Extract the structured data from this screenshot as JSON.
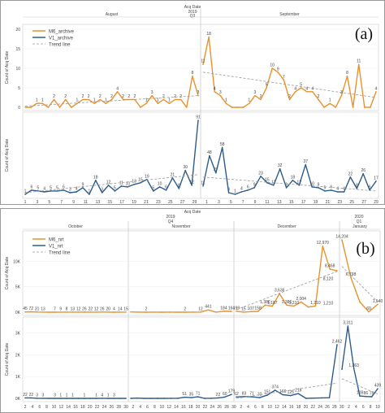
{
  "chart_data": [
    {
      "type": "line",
      "panel_label": "(a)",
      "header": {
        "axis_title": "Acq Date",
        "year": "2019",
        "quarter": "Q3",
        "months": [
          "August",
          "September"
        ]
      },
      "legend": {
        "placement": "top-left",
        "entries": [
          "M6_archive",
          "V1_archive",
          "Trend line"
        ]
      },
      "colors": {
        "M6_archive": "#E8922E",
        "V1_archive": "#2E5C8A",
        "Trend line": "#9A9A9A"
      },
      "x_ticks": [
        "1",
        "3",
        "5",
        "7",
        "9",
        "11",
        "13",
        "15",
        "17",
        "19",
        "21",
        "23",
        "25",
        "27",
        "29",
        "1",
        "3",
        "5",
        "7",
        "9",
        "11",
        "13",
        "15",
        "17",
        "19",
        "21",
        "23",
        "25",
        "27",
        "29"
      ],
      "subplots": [
        {
          "series_name": "M6_archive",
          "ylabel": "Count of Acq Date",
          "ylim": [
            0,
            20
          ],
          "yticks": [
            0,
            5,
            10,
            15,
            20
          ],
          "grid": true,
          "segments": [
            {
              "month": "August",
              "values": [
                0,
                0,
                1,
                1,
                0,
                2,
                0,
                2,
                0,
                1,
                2,
                2,
                1,
                2,
                1,
                2,
                4,
                2,
                2,
                2,
                0,
                1,
                3,
                1,
                2,
                1,
                2,
                2,
                0,
                8,
                3
              ],
              "labels": [
                "",
                "",
                "1",
                "1",
                "",
                "2",
                "",
                "2",
                "",
                "1",
                "2",
                "2",
                "1",
                "2",
                "1",
                "2",
                "4",
                "2",
                "2",
                "2",
                "",
                "1",
                "3",
                "1",
                "2",
                "1",
                "2",
                "2",
                "",
                "8",
                "3"
              ]
            },
            {
              "month": "September",
              "values": [
                11,
                18,
                4,
                3,
                1,
                0,
                0,
                0,
                1,
                3,
                2,
                5,
                10,
                9,
                7,
                2,
                4,
                5,
                4,
                4,
                2,
                0,
                1,
                0,
                3,
                8,
                0,
                11,
                0,
                0,
                4
              ],
              "labels": [
                "11",
                "18",
                "4",
                "3",
                "1",
                "",
                "",
                "",
                "1",
                "3",
                "2",
                "5",
                "10",
                "9",
                "7",
                "2",
                "4",
                "5",
                "4",
                "4",
                "2",
                "",
                "1",
                "",
                "3",
                "8",
                "",
                "11",
                "",
                "",
                "4"
              ]
            }
          ],
          "trend": [
            {
              "month": "August",
              "start": 0.3,
              "end": 3.0
            },
            {
              "month": "September",
              "start": 9.0,
              "end": 2.5
            }
          ]
        },
        {
          "series_name": "V1_archive",
          "ylabel": "Count of Acq Date",
          "ylim": [
            0,
            95
          ],
          "grid": true,
          "segments": [
            {
              "month": "August",
              "values": [
                1,
                6,
                5,
                4,
                5,
                5,
                6,
                3,
                4,
                9,
                1,
                18,
                3,
                12,
                5,
                11,
                10,
                13,
                15,
                19,
                5,
                10,
                6,
                21,
                8,
                30,
                12,
                91
              ],
              "labels": [
                "1",
                "6",
                "5",
                "4",
                "5",
                "5",
                "6",
                "3",
                "4",
                "9",
                "1",
                "18",
                "3",
                "12",
                "5",
                "11",
                "10",
                "13",
                "15",
                "19",
                "5",
                "10",
                "6",
                "21",
                "8",
                "30",
                "12",
                "91"
              ]
            },
            {
              "month": "September",
              "values": [
                11,
                48,
                27,
                58,
                3,
                1,
                4,
                6,
                9,
                23,
                15,
                12,
                32,
                9,
                18,
                12,
                37,
                10,
                9,
                5,
                6,
                4,
                4,
                22,
                8,
                26,
                6,
                17
              ],
              "labels": [
                "11",
                "48",
                "27",
                "58",
                "3",
                "1",
                "4",
                "6",
                "9",
                "23",
                "15",
                "12",
                "32",
                "9",
                "18",
                "12",
                "37",
                "10",
                "9",
                "5",
                "6",
                "4",
                "4",
                "22",
                "8",
                "26",
                "6",
                "17"
              ]
            }
          ],
          "trend": [
            {
              "month": "August",
              "start": 3.0,
              "end": 25.0
            },
            {
              "month": "September",
              "start": 22.0,
              "end": 5.0
            }
          ]
        }
      ]
    },
    {
      "type": "line",
      "panel_label": "(b)",
      "header": {
        "axis_title": "Acq Date",
        "year_main": "2019",
        "quarter_main": "Q4",
        "year_next": "2020",
        "quarter_next": "Q1",
        "months": [
          "October",
          "November",
          "December",
          "January"
        ]
      },
      "legend": {
        "placement": "top-left",
        "entries": [
          "M6_nrt",
          "V1_nrt",
          "Trend line"
        ]
      },
      "colors": {
        "M6_nrt": "#E8922E",
        "V1_nrt": "#2E5C8A",
        "Trend line": "#9A9A9A"
      },
      "x_ticks": [
        "2",
        "4",
        "6",
        "8",
        "10",
        "12",
        "14",
        "16",
        "18",
        "20",
        "22",
        "24",
        "26",
        "28",
        "30",
        "2",
        "4",
        "6",
        "8",
        "10",
        "12",
        "14",
        "16",
        "18",
        "20",
        "22",
        "24",
        "26",
        "28",
        "30",
        "2",
        "4",
        "6",
        "8",
        "10",
        "12",
        "14",
        "16",
        "18",
        "20",
        "22",
        "24",
        "26",
        "28",
        "30",
        "2",
        "4",
        "6",
        "8",
        "10"
      ],
      "subplots": [
        {
          "series_name": "M6_nrt",
          "ylabel": "Count of Acq Date",
          "ylim": [
            0,
            15000
          ],
          "yticks_labels": [
            "0K",
            "5K",
            "10K"
          ],
          "yticks": [
            0,
            5000,
            10000
          ],
          "grid": true,
          "segments": [
            {
              "month": "October",
              "values": [
                45,
                72,
                31,
                13,
                0,
                7,
                9,
                8,
                13,
                12,
                26,
                22,
                12,
                26,
                20,
                4,
                14,
                15
              ],
              "labels": [
                "45",
                "72",
                "31",
                "13",
                "",
                "7",
                "9",
                "8",
                "13",
                "12",
                "26",
                "22",
                "12",
                "26",
                "20",
                "4",
                "14",
                "15"
              ]
            },
            {
              "month": "November",
              "values": [
                51,
                12,
                2,
                19,
                2,
                9,
                7,
                2,
                23,
                12,
                441,
                22,
                184,
                164
              ],
              "labels": [
                "",
                "",
                "2",
                "",
                "",
                "",
                "",
                "2",
                "",
                "12",
                "441",
                "",
                "184",
                "164"
              ]
            },
            {
              "month": "December",
              "values": [
                199,
                15,
                107,
                158,
                1386,
                1187,
                3636,
                1386,
                1210,
                2004,
                1000,
                1210,
                12970,
                8468,
                8120
              ],
              "labels": [
                "199",
                "15",
                "107",
                "158",
                "1,386",
                "1,187",
                "3,636",
                "1,386",
                "1,210",
                "2,004",
                "",
                "1,210",
                "12,970",
                "8,468",
                ""
              ]
            },
            {
              "month": "January",
              "values": [
                14204,
                6798,
                2004,
                60,
                1540
              ],
              "labels": [
                "14,204",
                "6,798",
                "",
                "60",
                "1,540"
              ]
            }
          ],
          "extra_labels": [
            "8,120",
            "1,210"
          ],
          "trend": [
            {
              "month": "December",
              "start": 500,
              "end": 8000
            },
            {
              "month": "January",
              "start": 9000,
              "end": 2000
            }
          ]
        },
        {
          "series_name": "V1_nrt",
          "ylabel": "Count of Acq Date",
          "ylim": [
            0,
            3500
          ],
          "yticks_labels": [
            "0K",
            "1K",
            "2K",
            "3K"
          ],
          "yticks": [
            0,
            1000,
            2000,
            3000
          ],
          "grid": true,
          "segments": [
            {
              "month": "October",
              "values": [
                22,
                22,
                3,
                3,
                0,
                3,
                1,
                1,
                1,
                0,
                1,
                0,
                1,
                4,
                1,
                3,
                0,
                1
              ],
              "labels": [
                "22",
                "22",
                "3",
                "3",
                "",
                "3",
                "1",
                "1",
                "1",
                "",
                "1",
                "",
                "1",
                "4",
                "1",
                "3",
                "",
                ""
              ]
            },
            {
              "month": "November",
              "values": [
                0,
                12,
                0,
                0,
                3,
                1,
                2,
                2,
                51,
                35,
                71,
                1,
                2,
                22,
                60,
                179
              ],
              "labels": [
                "",
                "",
                "",
                "",
                "",
                "",
                "",
                "",
                "51",
                "35",
                "71",
                "",
                "",
                "22",
                "60",
                "179"
              ]
            },
            {
              "month": "December",
              "values": [
                62,
                83,
                71,
                32,
                151,
                374,
                166,
                125,
                218,
                1,
                11,
                21,
                28,
                2462
              ],
              "labels": [
                "62",
                "83",
                "71",
                "32",
                "151",
                "374",
                "166",
                "125",
                "218",
                "",
                "",
                "",
                "",
                "2,462"
              ]
            },
            {
              "month": "January",
              "values": [
                1333,
                3311,
                1363,
                108,
                86,
                75,
                439
              ],
              "labels": [
                "",
                "3,311",
                "1,363",
                "108",
                "86",
                "75",
                "439"
              ]
            }
          ],
          "trend": [
            {
              "month": "December",
              "start": 0,
              "end": 700
            },
            {
              "month": "January",
              "start": 900,
              "end": 200
            }
          ]
        }
      ]
    }
  ]
}
